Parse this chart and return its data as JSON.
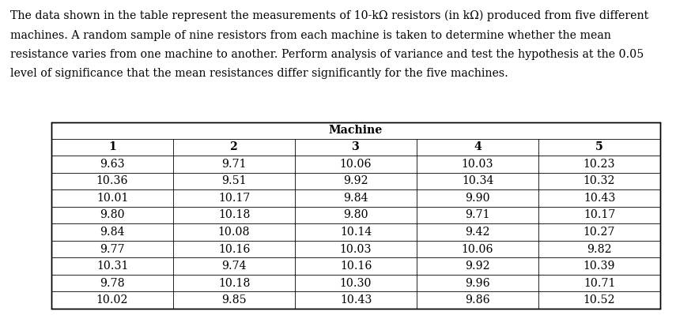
{
  "paragraph_lines": [
    "The data shown in the table represent the measurements of 10-kΩ resistors (in kΩ) produced from five different",
    "machines. A random sample of nine resistors from each machine is taken to determine whether the mean",
    "resistance varies from one machine to another. Perform analysis of variance and test the hypothesis at the 0.05",
    "level of significance that the mean resistances differ significantly for the five machines."
  ],
  "table_header_top": "Machine",
  "col_headers": [
    "1",
    "2",
    "3",
    "4",
    "5"
  ],
  "table_data": [
    [
      9.63,
      9.71,
      10.06,
      10.03,
      10.23
    ],
    [
      10.36,
      9.51,
      9.92,
      10.34,
      10.32
    ],
    [
      10.01,
      10.17,
      9.84,
      9.9,
      10.43
    ],
    [
      9.8,
      10.18,
      9.8,
      9.71,
      10.17
    ],
    [
      9.84,
      10.08,
      10.14,
      9.42,
      10.27
    ],
    [
      9.77,
      10.16,
      10.03,
      10.06,
      9.82
    ],
    [
      10.31,
      9.74,
      10.16,
      9.92,
      10.39
    ],
    [
      9.78,
      10.18,
      10.3,
      9.96,
      10.71
    ],
    [
      10.02,
      9.85,
      10.43,
      9.86,
      10.52
    ]
  ],
  "bg_color": "#ffffff",
  "text_color": "#000000",
  "font_size_para": 10.2,
  "font_size_table": 10.2,
  "font_family": "serif",
  "fig_width": 8.55,
  "fig_height": 3.99,
  "dpi": 100
}
